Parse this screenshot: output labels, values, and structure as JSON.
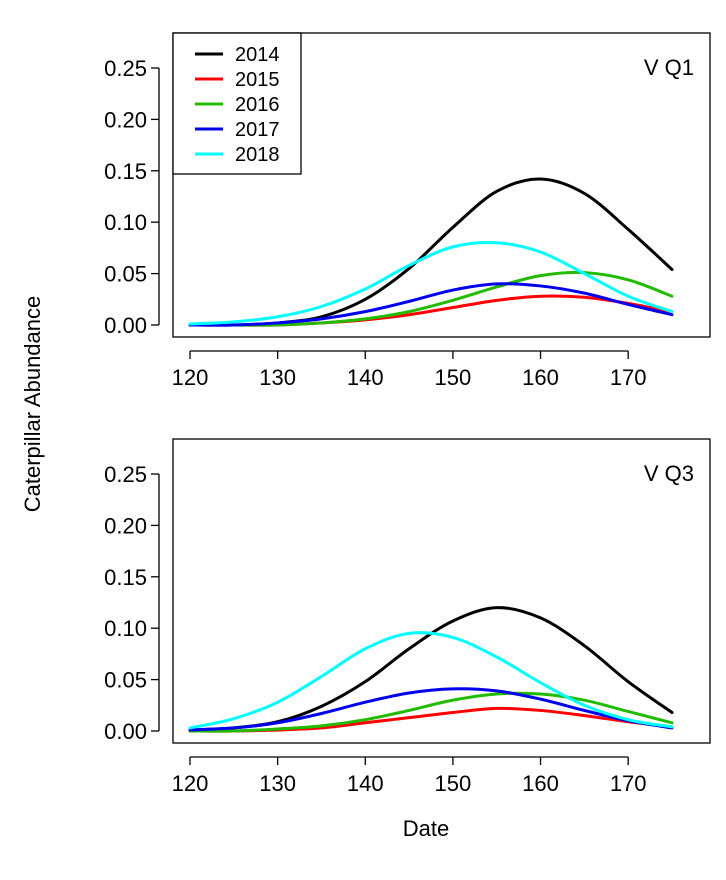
{
  "figure": {
    "ylabel": "Caterpillar Abundance",
    "xlabel": "Date"
  },
  "chart_data": [
    {
      "type": "line",
      "panel_label": "V Q1",
      "xlabel": "Date",
      "ylabel": "Caterpillar Abundance",
      "xlim": [
        120,
        175
      ],
      "ylim": [
        0,
        0.27
      ],
      "xticks": [
        120,
        130,
        140,
        150,
        160,
        170
      ],
      "yticks": [
        "0.00",
        "0.05",
        "0.10",
        "0.15",
        "0.20",
        "0.25"
      ],
      "grid": false,
      "legend": {
        "placement": "top-left",
        "entries": [
          "2014",
          "2015",
          "2016",
          "2017",
          "2018"
        ]
      },
      "x": [
        120,
        125,
        130,
        135,
        140,
        145,
        150,
        155,
        160,
        165,
        170,
        175
      ],
      "series": [
        {
          "name": "2014",
          "color": "#000000",
          "values": [
            0.0,
            0.0,
            0.002,
            0.008,
            0.025,
            0.055,
            0.095,
            0.13,
            0.142,
            0.128,
            0.093,
            0.054
          ]
        },
        {
          "name": "2015",
          "color": "#ff0000",
          "values": [
            0.0,
            0.0,
            0.0,
            0.002,
            0.005,
            0.01,
            0.017,
            0.024,
            0.028,
            0.027,
            0.021,
            0.013
          ]
        },
        {
          "name": "2016",
          "color": "#22bb00",
          "values": [
            0.0,
            0.0,
            0.0,
            0.002,
            0.006,
            0.013,
            0.024,
            0.037,
            0.048,
            0.051,
            0.044,
            0.028
          ]
        },
        {
          "name": "2017",
          "color": "#0000ee",
          "values": [
            0.0,
            0.0,
            0.002,
            0.006,
            0.013,
            0.023,
            0.034,
            0.04,
            0.038,
            0.031,
            0.02,
            0.01
          ]
        },
        {
          "name": "2018",
          "color": "#00ffff",
          "values": [
            0.001,
            0.003,
            0.008,
            0.018,
            0.035,
            0.058,
            0.076,
            0.08,
            0.071,
            0.05,
            0.028,
            0.013
          ]
        }
      ]
    },
    {
      "type": "line",
      "panel_label": "V Q3",
      "xlabel": "Date",
      "ylabel": "Caterpillar Abundance",
      "xlim": [
        120,
        175
      ],
      "ylim": [
        0,
        0.27
      ],
      "xticks": [
        120,
        130,
        140,
        150,
        160,
        170
      ],
      "yticks": [
        "0.00",
        "0.05",
        "0.10",
        "0.15",
        "0.20",
        "0.25"
      ],
      "grid": false,
      "x": [
        120,
        125,
        130,
        135,
        140,
        145,
        150,
        155,
        160,
        165,
        170,
        175
      ],
      "series": [
        {
          "name": "2014",
          "color": "#000000",
          "values": [
            0.001,
            0.003,
            0.009,
            0.024,
            0.048,
            0.08,
            0.107,
            0.12,
            0.11,
            0.083,
            0.048,
            0.018
          ]
        },
        {
          "name": "2015",
          "color": "#ff0000",
          "values": [
            0.0,
            0.0,
            0.001,
            0.003,
            0.008,
            0.013,
            0.018,
            0.022,
            0.02,
            0.015,
            0.009,
            0.004
          ]
        },
        {
          "name": "2016",
          "color": "#22bb00",
          "values": [
            0.0,
            0.0,
            0.002,
            0.005,
            0.011,
            0.02,
            0.03,
            0.036,
            0.036,
            0.03,
            0.019,
            0.008
          ]
        },
        {
          "name": "2017",
          "color": "#0000ee",
          "values": [
            0.001,
            0.003,
            0.008,
            0.017,
            0.028,
            0.037,
            0.041,
            0.039,
            0.031,
            0.02,
            0.01,
            0.003
          ]
        },
        {
          "name": "2018",
          "color": "#00ffff",
          "values": [
            0.003,
            0.012,
            0.028,
            0.053,
            0.08,
            0.095,
            0.091,
            0.072,
            0.047,
            0.025,
            0.011,
            0.004
          ]
        }
      ]
    }
  ]
}
